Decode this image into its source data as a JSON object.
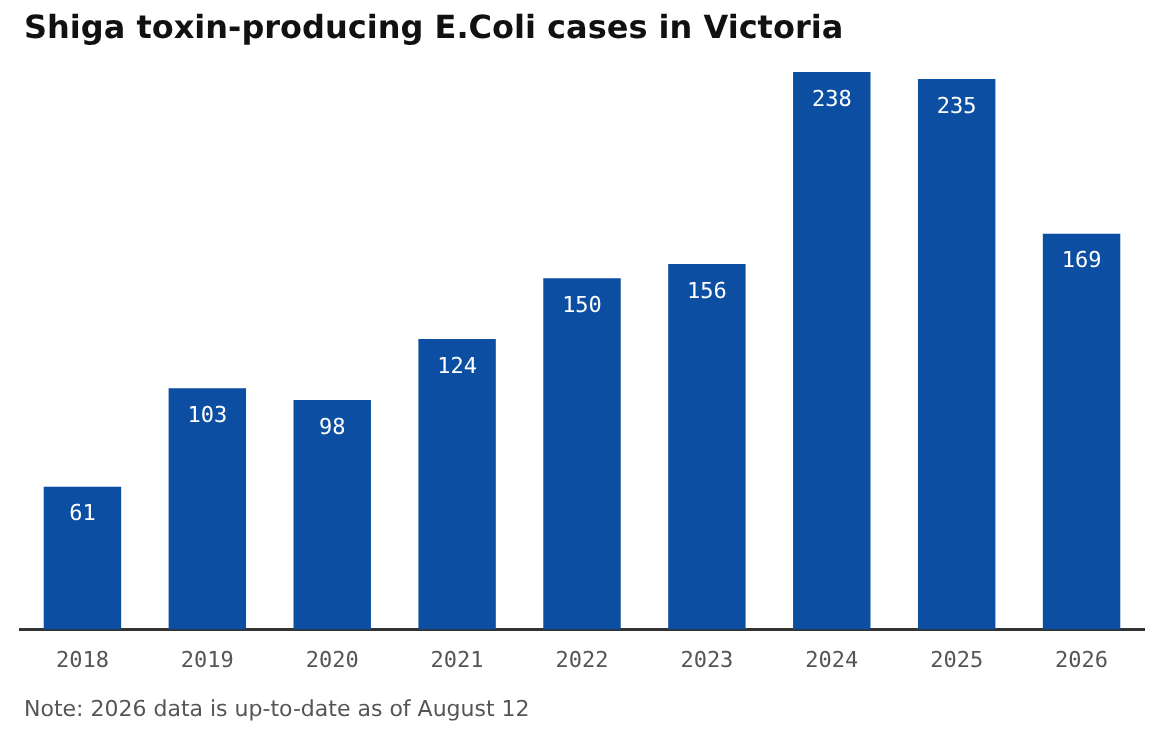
{
  "chart_data": {
    "type": "bar",
    "title": "Shiga toxin-producing E.Coli cases in Victoria",
    "categories": [
      "2018",
      "2019",
      "2020",
      "2021",
      "2022",
      "2023",
      "2024",
      "2025",
      "2026"
    ],
    "values": [
      61,
      103,
      98,
      124,
      150,
      156,
      238,
      235,
      169
    ],
    "color": "#0b4ea2",
    "data_labels": true,
    "grid": false,
    "legend": false,
    "tick_labels": "x",
    "annotations": [
      "Note: 2026 data is up-to-date as of August 12"
    ]
  }
}
